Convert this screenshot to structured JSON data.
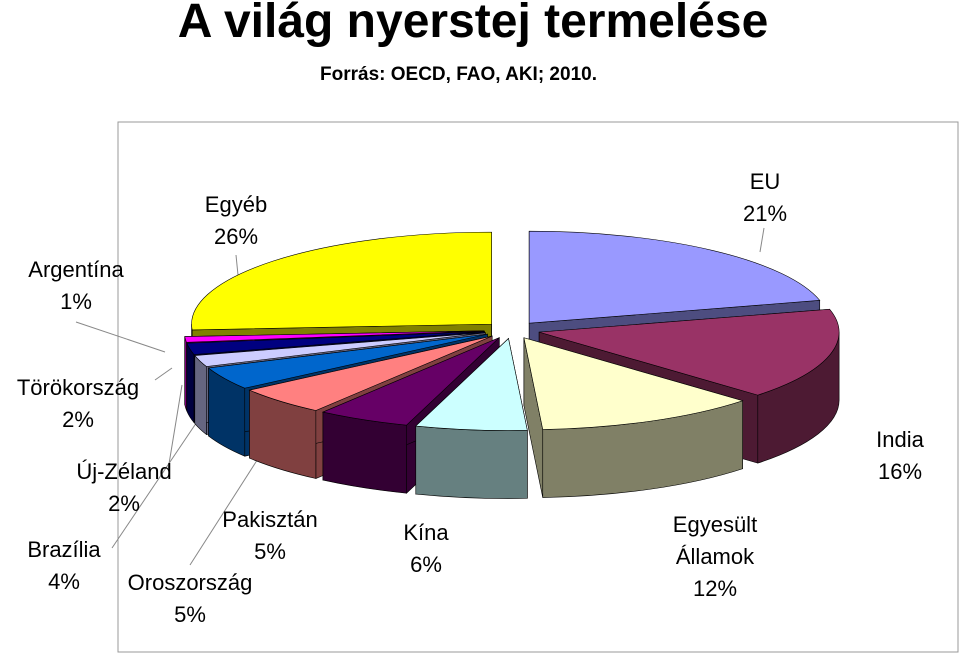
{
  "chart_data": {
    "type": "pie3d",
    "title": "A világ nyerstej termelése",
    "subtitle": "Forrás: OECD, FAO, AKI; 2010.",
    "categories": [
      "EU",
      "India",
      "Egyesült Államok",
      "Kína",
      "Oroszország",
      "Pakisztán",
      "Brazília",
      "Új-Zéland",
      "Törökország",
      "Argentína",
      "Egyéb"
    ],
    "values": [
      21,
      16,
      12,
      6,
      5,
      5,
      4,
      2,
      2,
      1,
      26
    ],
    "value_labels": [
      "21%",
      "16%",
      "12%",
      "6%",
      "5%",
      "5%",
      "4%",
      "2%",
      "2%",
      "1%",
      "26%"
    ],
    "colors": [
      "#9999ff",
      "#993366",
      "#ffffcc",
      "#ccffff",
      "#660066",
      "#ff8080",
      "#0066cc",
      "#ccccff",
      "#000080",
      "#ff00ff",
      "#ffff00"
    ]
  }
}
